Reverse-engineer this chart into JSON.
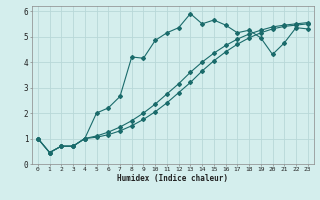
{
  "xlabel": "Humidex (Indice chaleur)",
  "bg_color": "#d4eeed",
  "grid_color": "#b8d8d8",
  "line_color": "#1a6b6b",
  "xlim": [
    -0.5,
    23.5
  ],
  "ylim": [
    0,
    6.2
  ],
  "xticks": [
    0,
    1,
    2,
    3,
    4,
    5,
    6,
    7,
    8,
    9,
    10,
    11,
    12,
    13,
    14,
    15,
    16,
    17,
    18,
    19,
    20,
    21,
    22,
    23
  ],
  "yticks": [
    0,
    1,
    2,
    3,
    4,
    5,
    6
  ],
  "line1_x": [
    0,
    1,
    2,
    3,
    4,
    5,
    6,
    7,
    8,
    9,
    10,
    11,
    12,
    13,
    14,
    15,
    16,
    17,
    18,
    19,
    20,
    21,
    22,
    23
  ],
  "line1_y": [
    1.0,
    0.45,
    0.7,
    0.7,
    1.0,
    2.0,
    2.2,
    2.65,
    4.2,
    4.15,
    4.85,
    5.15,
    5.35,
    5.9,
    5.5,
    5.65,
    5.45,
    5.15,
    5.25,
    4.95,
    4.3,
    4.75,
    5.35,
    5.3
  ],
  "line2_x": [
    0,
    1,
    2,
    3,
    4,
    5,
    6,
    7,
    8,
    9,
    10,
    11,
    12,
    13,
    14,
    15,
    16,
    17,
    18,
    19,
    20,
    21,
    22,
    23
  ],
  "line2_y": [
    1.0,
    0.45,
    0.7,
    0.7,
    1.0,
    1.05,
    1.15,
    1.3,
    1.5,
    1.75,
    2.05,
    2.4,
    2.8,
    3.2,
    3.65,
    4.05,
    4.4,
    4.7,
    4.95,
    5.15,
    5.3,
    5.4,
    5.45,
    5.5
  ],
  "line3_x": [
    0,
    1,
    2,
    3,
    4,
    5,
    6,
    7,
    8,
    9,
    10,
    11,
    12,
    13,
    14,
    15,
    16,
    17,
    18,
    19,
    20,
    21,
    22,
    23
  ],
  "line3_y": [
    1.0,
    0.45,
    0.7,
    0.7,
    1.0,
    1.1,
    1.25,
    1.45,
    1.7,
    2.0,
    2.35,
    2.75,
    3.15,
    3.6,
    4.0,
    4.35,
    4.65,
    4.9,
    5.1,
    5.25,
    5.38,
    5.45,
    5.5,
    5.55
  ]
}
